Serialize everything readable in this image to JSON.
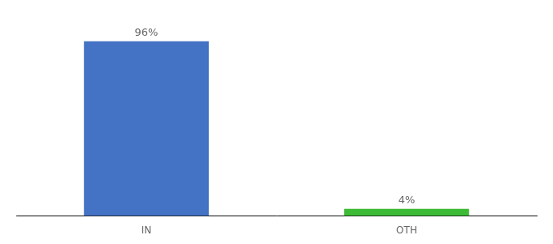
{
  "chart_data": {
    "type": "bar",
    "categories": [
      "IN",
      "OTH"
    ],
    "values": [
      96,
      4
    ],
    "value_labels": [
      "96%",
      "4%"
    ],
    "colors": [
      "#4472c4",
      "#3dbb35"
    ],
    "ylim": [
      0,
      108
    ],
    "grid": false,
    "tick_labels": "x",
    "data_labels": true
  }
}
